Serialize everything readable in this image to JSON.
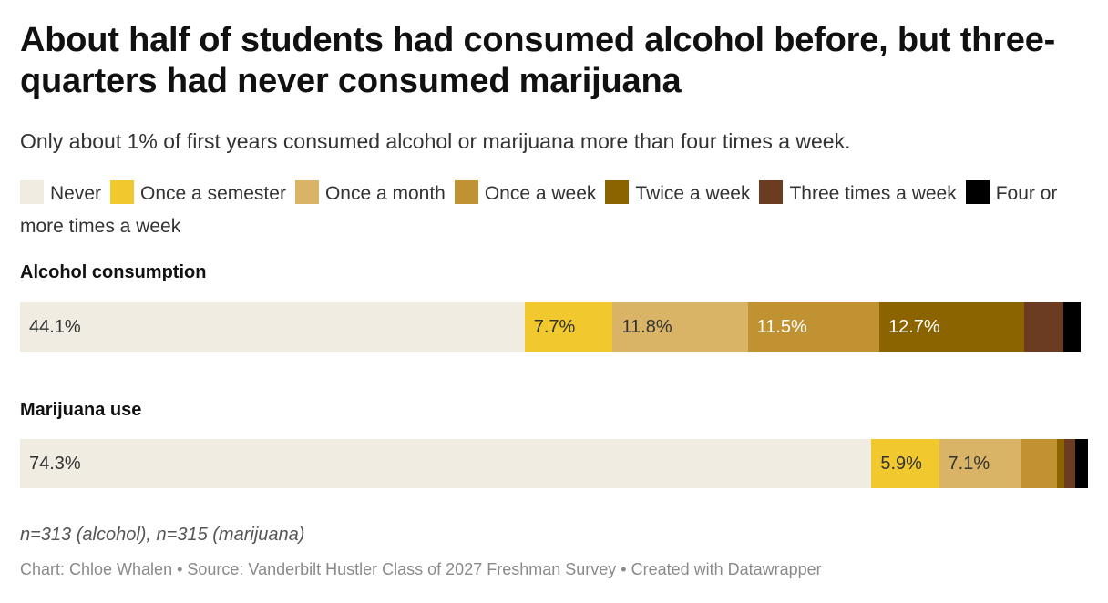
{
  "title": "About half of students had consumed alcohol before, but three-quarters had never consumed marijuana",
  "subtitle": "Only about 1% of first years consumed alcohol or marijuana more than four times a week.",
  "notes": "n=313 (alcohol), n=315 (marijuana)",
  "source": "Chart: Chloe Whalen • Source: Vanderbilt Hustler Class of 2027 Freshman Survey • Created with Datawrapper",
  "chart_data": {
    "type": "bar",
    "orientation": "horizontal",
    "stacked": true,
    "unit": "%",
    "categories": [
      "Never",
      "Once a semester",
      "Once a month",
      "Once a week",
      "Twice a week",
      "Three times a week",
      "Four or more times a week"
    ],
    "colors": [
      "#f1ece2",
      "#f1c92f",
      "#d9b466",
      "#c19232",
      "#8b6400",
      "#6b3b22",
      "#000000"
    ],
    "label_colors": [
      "#333333",
      "#333333",
      "#333333",
      "#ffffff",
      "#ffffff",
      "#ffffff",
      "#ffffff"
    ],
    "series": [
      {
        "name": "Alcohol consumption",
        "values": [
          44.1,
          7.7,
          11.8,
          11.5,
          12.7,
          3.4,
          1.5
        ],
        "labels": [
          "44.1%",
          "7.7%",
          "11.8%",
          "11.5%",
          "12.7%",
          "",
          ""
        ]
      },
      {
        "name": "Marijuana use",
        "values": [
          74.3,
          5.9,
          7.1,
          3.2,
          0.6,
          1.0,
          1.1
        ],
        "labels": [
          "74.3%",
          "5.9%",
          "7.1%",
          "",
          "",
          "",
          ""
        ]
      }
    ]
  }
}
